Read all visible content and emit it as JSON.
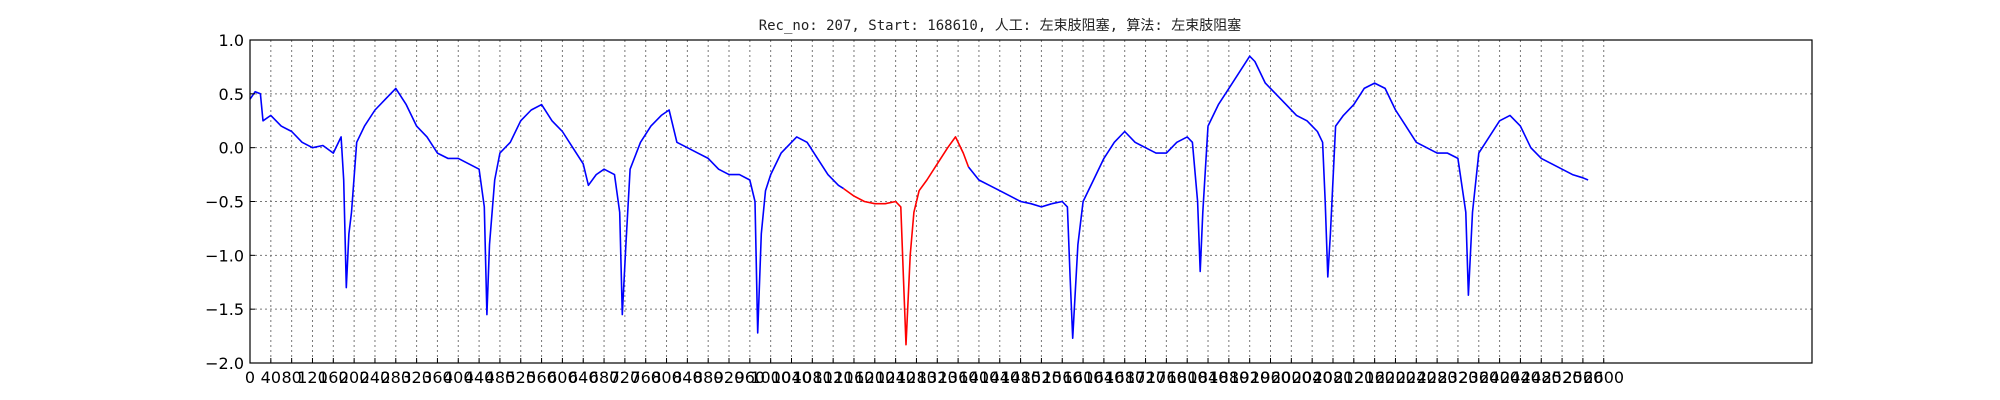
{
  "chart_data": {
    "type": "line",
    "title": "Rec_no: 207, Start: 168610, 人工: 左束肢阻塞, 算法: 左束肢阻塞",
    "xlabel": "",
    "ylabel": "",
    "xlim": [
      0,
      3000
    ],
    "ylim": [
      -2.0,
      1.0
    ],
    "grid": true,
    "y_ticks": [
      "1.0",
      "0.5",
      "0.0",
      "−0.5",
      "−1.0",
      "−1.5",
      "−2.0"
    ],
    "x_ticks": [
      "0",
      "40",
      "80",
      "120",
      "160",
      "200",
      "240",
      "280",
      "320",
      "360",
      "400",
      "440",
      "480",
      "520",
      "560",
      "600",
      "640",
      "680",
      "720",
      "760",
      "800",
      "840",
      "880",
      "920",
      "960",
      "1000",
      "1040",
      "1080",
      "1120",
      "1160",
      "1200",
      "1240",
      "1280",
      "1320",
      "1360",
      "1400",
      "1440",
      "1480",
      "1520",
      "1560",
      "1600",
      "1640",
      "1680",
      "1720",
      "1760",
      "1800",
      "1840",
      "1880",
      "1920",
      "1960",
      "2000",
      "2040",
      "2080",
      "2120",
      "2160",
      "2200",
      "2240",
      "2280",
      "2320",
      "2360",
      "2400",
      "2440",
      "2480",
      "2520",
      "2560",
      "2600"
    ],
    "series": [
      {
        "color": "#0000ff",
        "segments": [
          [
            [
              0,
              0.45
            ],
            [
              10,
              0.52
            ],
            [
              20,
              0.5
            ],
            [
              25,
              0.25
            ],
            [
              40,
              0.3
            ],
            [
              60,
              0.2
            ],
            [
              80,
              0.15
            ],
            [
              100,
              0.05
            ],
            [
              120,
              0.0
            ],
            [
              140,
              0.02
            ],
            [
              160,
              -0.05
            ],
            [
              175,
              0.1
            ],
            [
              180,
              -0.3
            ],
            [
              185,
              -1.3
            ],
            [
              190,
              -0.8
            ],
            [
              195,
              -0.6
            ],
            [
              205,
              0.05
            ],
            [
              220,
              0.2
            ],
            [
              240,
              0.35
            ],
            [
              260,
              0.45
            ],
            [
              280,
              0.55
            ],
            [
              300,
              0.4
            ],
            [
              320,
              0.2
            ],
            [
              340,
              0.1
            ],
            [
              360,
              -0.05
            ],
            [
              380,
              -0.1
            ],
            [
              400,
              -0.1
            ],
            [
              420,
              -0.15
            ],
            [
              440,
              -0.2
            ],
            [
              450,
              -0.55
            ],
            [
              455,
              -1.55
            ],
            [
              460,
              -0.9
            ],
            [
              470,
              -0.3
            ],
            [
              480,
              -0.05
            ],
            [
              500,
              0.05
            ],
            [
              520,
              0.25
            ],
            [
              540,
              0.35
            ],
            [
              560,
              0.4
            ],
            [
              580,
              0.25
            ],
            [
              600,
              0.15
            ],
            [
              620,
              0.0
            ],
            [
              640,
              -0.15
            ],
            [
              650,
              -0.35
            ],
            [
              665,
              -0.25
            ],
            [
              680,
              -0.2
            ],
            [
              700,
              -0.25
            ],
            [
              710,
              -0.6
            ],
            [
              715,
              -1.55
            ],
            [
              722,
              -0.9
            ],
            [
              730,
              -0.2
            ],
            [
              750,
              0.05
            ],
            [
              770,
              0.2
            ],
            [
              790,
              0.3
            ],
            [
              805,
              0.35
            ],
            [
              820,
              0.05
            ],
            [
              840,
              0.0
            ],
            [
              860,
              -0.05
            ],
            [
              880,
              -0.1
            ],
            [
              900,
              -0.2
            ],
            [
              920,
              -0.25
            ],
            [
              940,
              -0.25
            ],
            [
              960,
              -0.3
            ],
            [
              970,
              -0.5
            ],
            [
              975,
              -1.72
            ],
            [
              982,
              -0.8
            ],
            [
              990,
              -0.4
            ],
            [
              1000,
              -0.25
            ],
            [
              1020,
              -0.05
            ],
            [
              1040,
              0.05
            ],
            [
              1050,
              0.1
            ],
            [
              1070,
              0.05
            ],
            [
              1090,
              -0.1
            ],
            [
              1110,
              -0.25
            ],
            [
              1130,
              -0.35
            ],
            [
              1140,
              -0.38
            ]
          ],
          [
            [
              1540,
              -0.52
            ],
            [
              1560,
              -0.5
            ],
            [
              1570,
              -0.55
            ],
            [
              1575,
              -1.2
            ],
            [
              1580,
              -1.77
            ],
            [
              1590,
              -0.9
            ],
            [
              1600,
              -0.5
            ],
            [
              1620,
              -0.3
            ],
            [
              1640,
              -0.1
            ],
            [
              1660,
              0.05
            ],
            [
              1680,
              0.15
            ],
            [
              1700,
              0.05
            ],
            [
              1720,
              0.0
            ],
            [
              1740,
              -0.05
            ],
            [
              1760,
              -0.05
            ],
            [
              1780,
              0.05
            ],
            [
              1800,
              0.1
            ],
            [
              1810,
              0.05
            ],
            [
              1820,
              -0.5
            ],
            [
              1825,
              -1.15
            ],
            [
              1830,
              -0.6
            ],
            [
              1840,
              0.2
            ],
            [
              1860,
              0.4
            ],
            [
              1880,
              0.55
            ],
            [
              1900,
              0.7
            ],
            [
              1920,
              0.85
            ],
            [
              1930,
              0.8
            ],
            [
              1950,
              0.6
            ],
            [
              1970,
              0.5
            ],
            [
              1990,
              0.4
            ],
            [
              2010,
              0.3
            ],
            [
              2030,
              0.25
            ],
            [
              2050,
              0.15
            ],
            [
              2060,
              0.05
            ],
            [
              2065,
              -0.5
            ],
            [
              2070,
              -1.2
            ],
            [
              2075,
              -0.8
            ],
            [
              2085,
              0.2
            ],
            [
              2100,
              0.3
            ],
            [
              2120,
              0.4
            ],
            [
              2140,
              0.55
            ],
            [
              2160,
              0.6
            ],
            [
              2180,
              0.55
            ],
            [
              2200,
              0.35
            ],
            [
              2220,
              0.2
            ],
            [
              2240,
              0.05
            ],
            [
              2260,
              0.0
            ],
            [
              2280,
              -0.05
            ],
            [
              2300,
              -0.05
            ],
            [
              2320,
              -0.1
            ],
            [
              2335,
              -0.6
            ],
            [
              2340,
              -1.37
            ],
            [
              2348,
              -0.6
            ],
            [
              2360,
              -0.05
            ],
            [
              2380,
              0.1
            ],
            [
              2400,
              0.25
            ],
            [
              2420,
              0.3
            ],
            [
              2440,
              0.2
            ],
            [
              2460,
              0.0
            ],
            [
              2480,
              -0.1
            ],
            [
              2500,
              -0.15
            ],
            [
              2520,
              -0.2
            ],
            [
              2540,
              -0.25
            ],
            [
              2560,
              -0.28
            ],
            [
              2570,
              -0.3
            ]
          ]
        ]
      },
      {
        "color": "#ff0000",
        "segments": [
          [
            [
              1140,
              -0.38
            ],
            [
              1160,
              -0.45
            ],
            [
              1180,
              -0.5
            ],
            [
              1200,
              -0.52
            ],
            [
              1220,
              -0.52
            ],
            [
              1240,
              -0.5
            ],
            [
              1250,
              -0.55
            ],
            [
              1255,
              -1.2
            ],
            [
              1260,
              -1.83
            ],
            [
              1268,
              -1.0
            ],
            [
              1275,
              -0.6
            ],
            [
              1285,
              -0.4
            ],
            [
              1300,
              -0.3
            ],
            [
              1320,
              -0.15
            ],
            [
              1340,
              0.0
            ],
            [
              1355,
              0.1
            ],
            [
              1370,
              -0.05
            ],
            [
              1380,
              -0.18
            ]
          ]
        ]
      },
      {
        "color": "#0000ff",
        "segments": [
          [
            [
              1380,
              -0.18
            ],
            [
              1400,
              -0.3
            ],
            [
              1420,
              -0.35
            ],
            [
              1440,
              -0.4
            ],
            [
              1460,
              -0.45
            ],
            [
              1480,
              -0.5
            ],
            [
              1500,
              -0.52
            ],
            [
              1520,
              -0.55
            ],
            [
              1540,
              -0.52
            ]
          ]
        ]
      }
    ]
  }
}
